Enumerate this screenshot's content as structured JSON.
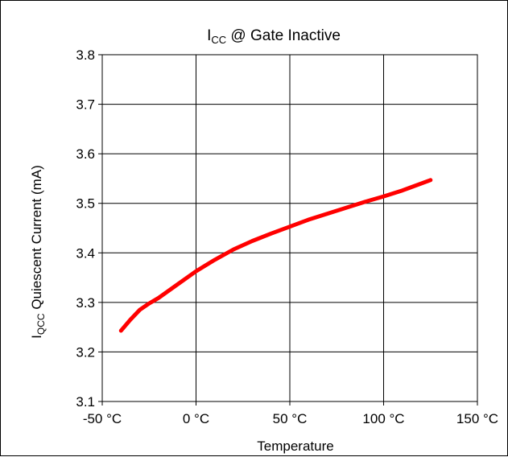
{
  "chart_data": {
    "type": "line",
    "title": {
      "main": "I",
      "sub": "CC",
      "rest": " @ Gate Inactive"
    },
    "xlabel": "Temperature",
    "ylabel": {
      "main": "I",
      "sub": "QCC",
      "rest": " Quiescent Current (mA)"
    },
    "xlim": [
      -50,
      150
    ],
    "ylim": [
      3.1,
      3.8
    ],
    "x_ticks": [
      -50,
      0,
      50,
      100,
      150
    ],
    "x_tick_labels": [
      "-50 °C",
      "0 °C",
      "50 °C",
      "100 °C",
      "150 °C"
    ],
    "y_ticks": [
      3.1,
      3.2,
      3.3,
      3.4,
      3.5,
      3.6,
      3.7,
      3.8
    ],
    "y_tick_labels": [
      "3.1",
      "3.2",
      "3.3",
      "3.4",
      "3.5",
      "3.6",
      "3.7",
      "3.8"
    ],
    "grid": true,
    "series": [
      {
        "color": "#ff0000",
        "x": [
          -40,
          -35,
          -30,
          -25,
          -20,
          -10,
          0,
          10,
          20,
          30,
          40,
          50,
          60,
          70,
          80,
          90,
          100,
          110,
          125
        ],
        "y": [
          3.243,
          3.265,
          3.285,
          3.298,
          3.309,
          3.336,
          3.363,
          3.386,
          3.407,
          3.424,
          3.439,
          3.453,
          3.467,
          3.479,
          3.491,
          3.503,
          3.514,
          3.526,
          3.547
        ]
      }
    ]
  }
}
